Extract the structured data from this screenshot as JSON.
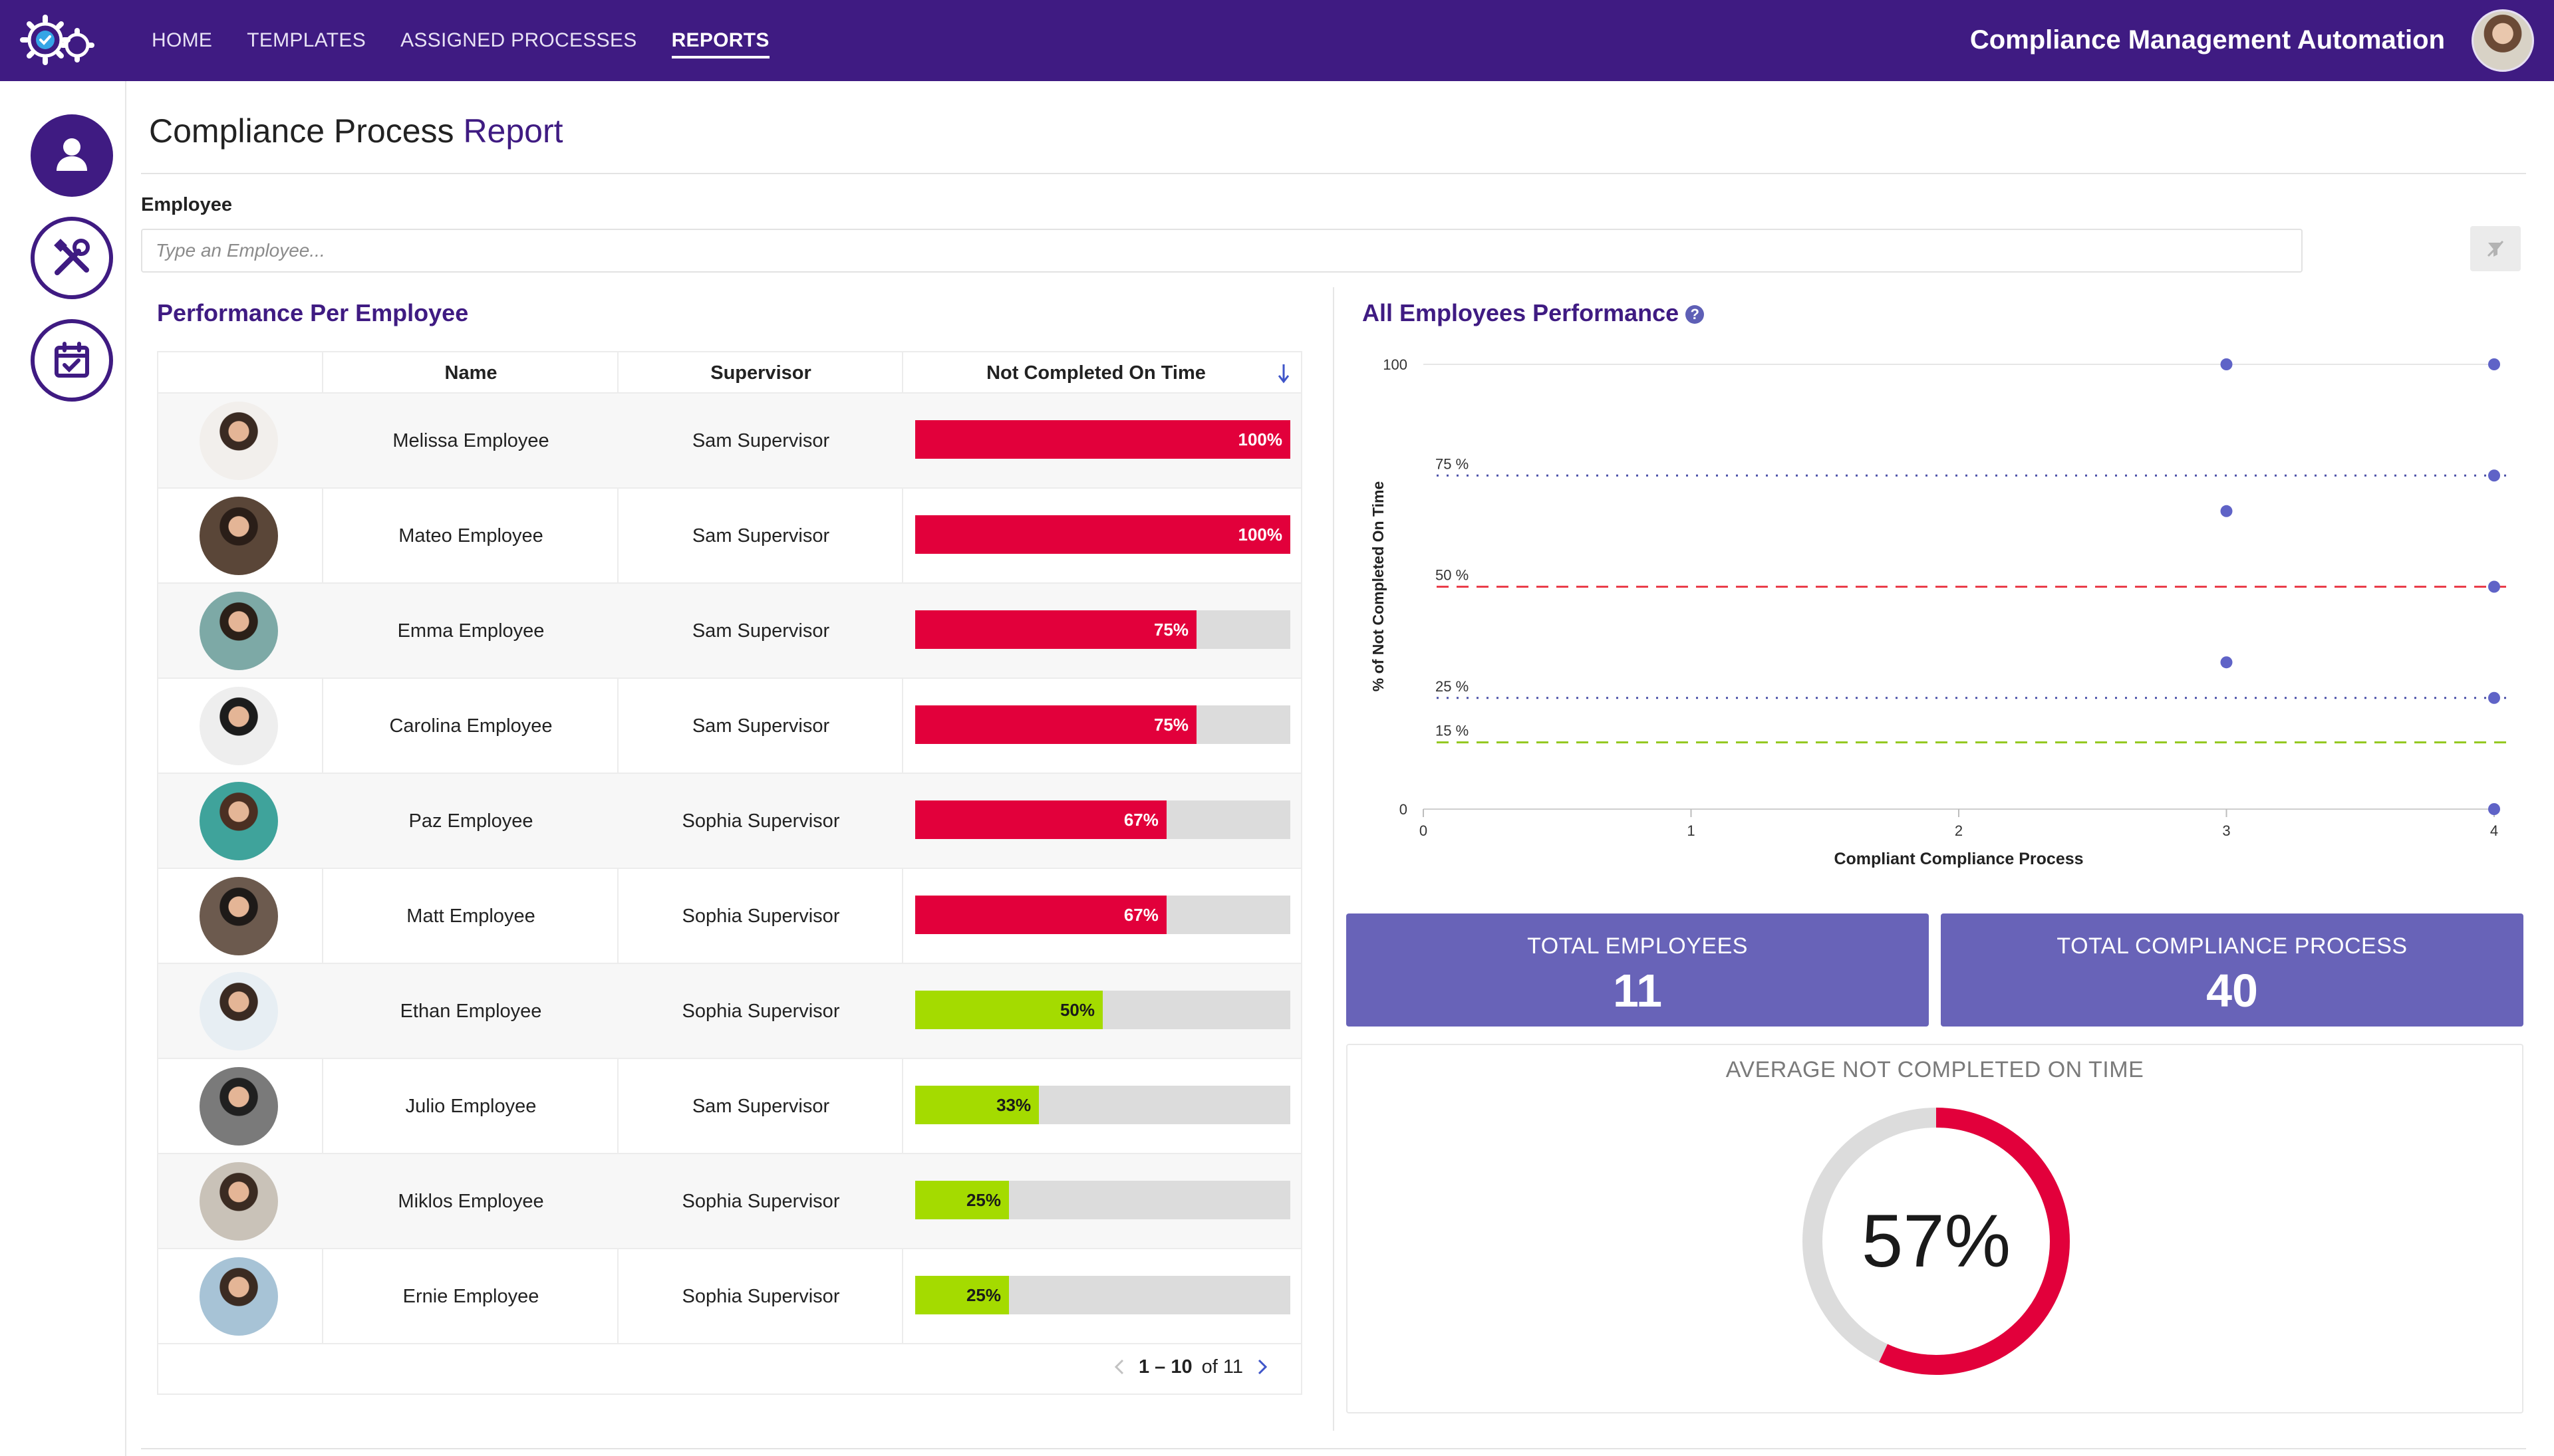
{
  "header": {
    "nav": [
      "HOME",
      "TEMPLATES",
      "ASSIGNED PROCESSES",
      "REPORTS"
    ],
    "active_nav": "REPORTS",
    "app_title": "Compliance Management Automation"
  },
  "page": {
    "title_main": "Compliance Process",
    "title_accent": "Report"
  },
  "filter": {
    "label": "Employee",
    "placeholder": "Type an Employee..."
  },
  "table": {
    "title": "Performance Per Employee",
    "columns": [
      "Name",
      "Supervisor",
      "Not Completed On Time"
    ],
    "rows": [
      {
        "name": "Melissa Employee",
        "supervisor": "Sam Supervisor",
        "pct": 100,
        "label": "100%"
      },
      {
        "name": "Mateo Employee",
        "supervisor": "Sam Supervisor",
        "pct": 100,
        "label": "100%"
      },
      {
        "name": "Emma Employee",
        "supervisor": "Sam Supervisor",
        "pct": 75,
        "label": "75%"
      },
      {
        "name": "Carolina Employee",
        "supervisor": "Sam Supervisor",
        "pct": 75,
        "label": "75%"
      },
      {
        "name": "Paz Employee",
        "supervisor": "Sophia Supervisor",
        "pct": 67,
        "label": "67%"
      },
      {
        "name": "Matt Employee",
        "supervisor": "Sophia Supervisor",
        "pct": 67,
        "label": "67%"
      },
      {
        "name": "Ethan Employee",
        "supervisor": "Sophia Supervisor",
        "pct": 50,
        "label": "50%"
      },
      {
        "name": "Julio Employee",
        "supervisor": "Sam Supervisor",
        "pct": 33,
        "label": "33%"
      },
      {
        "name": "Miklos Employee",
        "supervisor": "Sophia Supervisor",
        "pct": 25,
        "label": "25%"
      },
      {
        "name": "Ernie Employee",
        "supervisor": "Sophia Supervisor",
        "pct": 25,
        "label": "25%"
      }
    ],
    "pager": {
      "range": "1 – 10",
      "of_text": "of 11"
    }
  },
  "colors": {
    "brand": "#3f1b82",
    "bad": "#e2003b",
    "good": "#a4db00",
    "track": "#dcdcdc",
    "card": "#6863b8",
    "point": "#5f63c7",
    "dotted": "#4b50a8",
    "threshold50": "#ea3d4a",
    "threshold15": "#93c81f"
  },
  "chart_title": "All Employees Performance",
  "chart_data": {
    "type": "scatter",
    "title": "All Employees Performance",
    "xlabel": "Compliant Compliance Process",
    "ylabel": "% of Not Completed On Time",
    "xlim": [
      0,
      4
    ],
    "ylim": [
      0,
      100
    ],
    "x_ticks": [
      "0",
      "1",
      "2",
      "3",
      "4"
    ],
    "y_ticks": [
      "0",
      "100"
    ],
    "points": [
      {
        "x": 3,
        "y": 100
      },
      {
        "x": 4,
        "y": 100
      },
      {
        "x": 4,
        "y": 75
      },
      {
        "x": 3,
        "y": 67
      },
      {
        "x": 4,
        "y": 50
      },
      {
        "x": 3,
        "y": 33
      },
      {
        "x": 4,
        "y": 25
      },
      {
        "x": 4,
        "y": 0
      }
    ],
    "reference_lines": [
      {
        "y": 75,
        "label": "75 %",
        "style": "dotted"
      },
      {
        "y": 50,
        "label": "50 %",
        "style": "dashed"
      },
      {
        "y": 25,
        "label": "25 %",
        "style": "dotted"
      },
      {
        "y": 15,
        "label": "15 %",
        "style": "dashed"
      }
    ]
  },
  "stats": {
    "total_employees_label": "TOTAL EMPLOYEES",
    "total_employees_value": "11",
    "total_process_label": "TOTAL COMPLIANCE PROCESS",
    "total_process_value": "40",
    "avg_label": "AVERAGE NOT COMPLETED ON TIME",
    "avg_value": 57,
    "avg_text": "57%"
  }
}
